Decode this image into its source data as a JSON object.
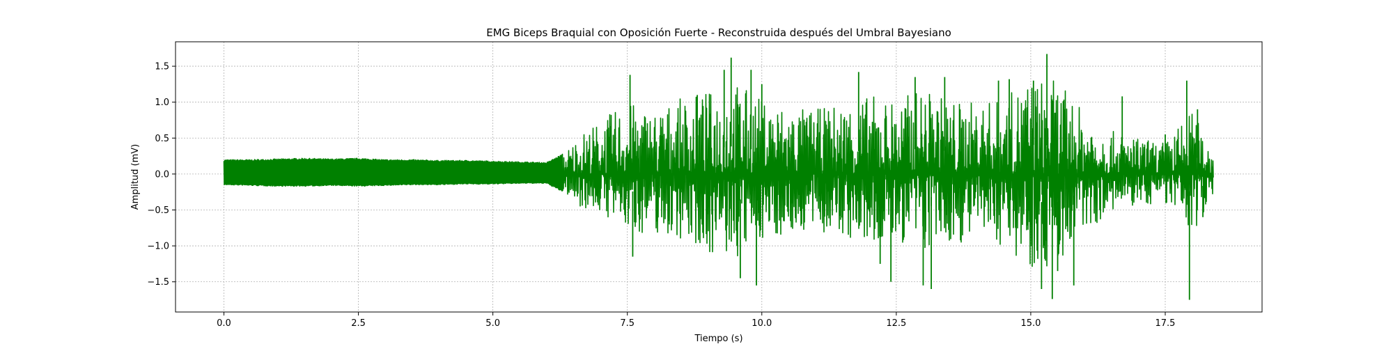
{
  "chart_data": {
    "type": "line",
    "title": "EMG Biceps Braquial con Oposición Fuerte - Reconstruida después del Umbral Bayesiano",
    "xlabel": "Tiempo (s)",
    "ylabel": "Amplitud (mV)",
    "xlim": [
      -0.9,
      19.3
    ],
    "ylim": [
      -1.92,
      1.84
    ],
    "x_ticks": [
      0.0,
      2.5,
      5.0,
      7.5,
      10.0,
      12.5,
      15.0,
      17.5
    ],
    "x_tick_labels": [
      "0.0",
      "2.5",
      "5.0",
      "7.5",
      "10.0",
      "12.5",
      "15.0",
      "17.5"
    ],
    "y_ticks": [
      -1.5,
      -1.0,
      -0.5,
      0.0,
      0.5,
      1.0,
      1.5
    ],
    "y_tick_labels": [
      "−1.5",
      "−1.0",
      "−0.5",
      "0.0",
      "0.5",
      "1.0",
      "1.5"
    ],
    "grid": true,
    "line_color": "#008000",
    "series": [
      {
        "time_range": [
          0.0,
          18.4
        ],
        "envelope": {
          "x": [
            0.0,
            0.5,
            1.0,
            1.5,
            2.0,
            2.5,
            3.0,
            3.5,
            4.0,
            4.5,
            5.0,
            5.5,
            6.0,
            6.3,
            6.6,
            7.0,
            7.5,
            8.0,
            8.5,
            9.0,
            9.5,
            10.0,
            10.5,
            11.0,
            11.5,
            12.0,
            12.5,
            13.0,
            13.5,
            14.0,
            14.5,
            15.0,
            15.5,
            16.0,
            16.5,
            17.0,
            17.5,
            18.0,
            18.4
          ],
          "upper": [
            0.2,
            0.2,
            0.21,
            0.22,
            0.21,
            0.22,
            0.2,
            0.2,
            0.19,
            0.19,
            0.18,
            0.17,
            0.16,
            0.28,
            0.55,
            0.75,
            1.0,
            0.9,
            1.05,
            1.15,
            1.3,
            1.05,
            0.95,
            0.9,
            1.0,
            1.1,
            1.05,
            1.2,
            1.05,
            1.0,
            1.05,
            1.35,
            1.3,
            0.85,
            0.6,
            0.5,
            0.45,
            0.9,
            0.3
          ],
          "lower": [
            -0.15,
            -0.16,
            -0.17,
            -0.17,
            -0.16,
            -0.17,
            -0.16,
            -0.15,
            -0.15,
            -0.14,
            -0.14,
            -0.13,
            -0.13,
            -0.25,
            -0.45,
            -0.55,
            -0.8,
            -0.85,
            -0.9,
            -1.1,
            -1.25,
            -0.9,
            -0.85,
            -0.8,
            -0.9,
            -1.05,
            -0.95,
            -1.1,
            -1.0,
            -0.9,
            -1.0,
            -1.3,
            -1.3,
            -0.8,
            -0.55,
            -0.45,
            -0.4,
            -0.85,
            -0.25
          ]
        },
        "peaks": [
          {
            "x": 7.55,
            "y": 1.38
          },
          {
            "x": 7.6,
            "y": -1.15
          },
          {
            "x": 8.8,
            "y": 1.1
          },
          {
            "x": 9.3,
            "y": 1.45
          },
          {
            "x": 9.43,
            "y": 1.62
          },
          {
            "x": 9.6,
            "y": -1.45
          },
          {
            "x": 9.8,
            "y": 1.45
          },
          {
            "x": 9.9,
            "y": -1.55
          },
          {
            "x": 10.0,
            "y": 1.25
          },
          {
            "x": 11.8,
            "y": 1.42
          },
          {
            "x": 12.2,
            "y": -1.25
          },
          {
            "x": 12.4,
            "y": -1.5
          },
          {
            "x": 12.85,
            "y": 1.35
          },
          {
            "x": 13.0,
            "y": -1.55
          },
          {
            "x": 13.15,
            "y": -1.6
          },
          {
            "x": 13.4,
            "y": 1.35
          },
          {
            "x": 14.4,
            "y": 1.3
          },
          {
            "x": 14.6,
            "y": 1.32
          },
          {
            "x": 15.05,
            "y": 1.3
          },
          {
            "x": 15.2,
            "y": -1.6
          },
          {
            "x": 15.3,
            "y": 1.67
          },
          {
            "x": 15.4,
            "y": -1.74
          },
          {
            "x": 15.5,
            "y": -1.35
          },
          {
            "x": 15.8,
            "y": -1.55
          },
          {
            "x": 16.7,
            "y": 1.08
          },
          {
            "x": 17.5,
            "y": 0.55
          },
          {
            "x": 17.9,
            "y": 1.3
          },
          {
            "x": 17.95,
            "y": -1.75
          },
          {
            "x": 18.1,
            "y": 0.9
          },
          {
            "x": 18.2,
            "y": -0.6
          }
        ]
      }
    ]
  }
}
